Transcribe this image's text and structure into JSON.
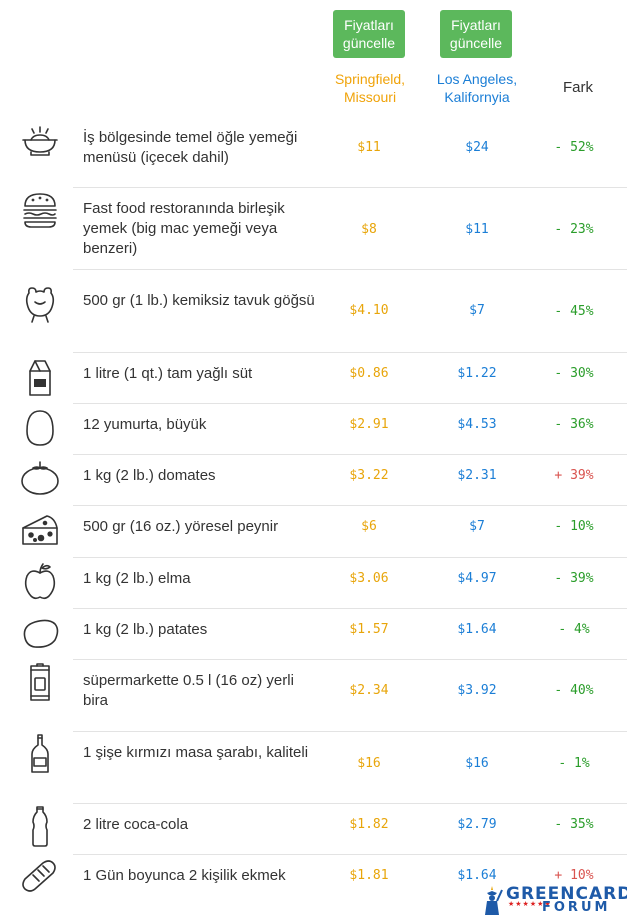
{
  "header": {
    "update_button_1": "Fiyatları güncelle",
    "update_button_2": "Fiyatları güncelle",
    "city_a": "Springfield, Missouri",
    "city_b": "Los Angeles, Kalifornyia",
    "diff_label": "Fark"
  },
  "rows": [
    {
      "icon": "lunch-icon",
      "item": "İş bölgesinde temel öğle yemeği menüsü (içecek dahil)",
      "a": "$11",
      "b": "$24",
      "diff": "- 52%"
    },
    {
      "icon": "burger-icon",
      "item": "Fast food restoranında birleşik yemek (big mac yemeği veya benzeri)",
      "a": "$8",
      "b": "$11",
      "diff": "- 23%"
    },
    {
      "icon": "chicken-icon",
      "item": "500 gr (1 lb.) kemiksiz tavuk göğsü",
      "a": "$4.10",
      "b": "$7",
      "diff": "- 45%"
    },
    {
      "icon": "milk-icon",
      "item": "1 litre (1 qt.) tam yağlı süt",
      "a": "$0.86",
      "b": "$1.22",
      "diff": "- 30%"
    },
    {
      "icon": "egg-icon",
      "item": "12 yumurta, büyük",
      "a": "$2.91",
      "b": "$4.53",
      "diff": "- 36%"
    },
    {
      "icon": "tomato-icon",
      "item": "1 kg (2 lb.) domates",
      "a": "$3.22",
      "b": "$2.31",
      "diff": "+ 39%"
    },
    {
      "icon": "cheese-icon",
      "item": "500 gr (16 oz.) yöresel peynir",
      "a": "$6",
      "b": "$7",
      "diff": "- 10%"
    },
    {
      "icon": "apple-icon",
      "item": "1 kg (2 lb.) elma",
      "a": "$3.06",
      "b": "$4.97",
      "diff": "- 39%"
    },
    {
      "icon": "potato-icon",
      "item": "1 kg (2 lb.) patates",
      "a": "$1.57",
      "b": "$1.64",
      "diff": "- 4%"
    },
    {
      "icon": "beer-can-icon",
      "item": "süpermarkette 0.5 l (16 oz) yerli bira",
      "a": "$2.34",
      "b": "$3.92",
      "diff": "- 40%"
    },
    {
      "icon": "wine-bottle-icon",
      "item": "1 şişe kırmızı masa şarabı, kaliteli",
      "a": "$16",
      "b": "$16",
      "diff": "- 1%"
    },
    {
      "icon": "soda-bottle-icon",
      "item": "2 litre coca-cola",
      "a": "$1.82",
      "b": "$2.79",
      "diff": "- 35%"
    },
    {
      "icon": "bread-icon",
      "item": "1 Gün boyunca 2 kişilik ekmek",
      "a": "$1.81",
      "b": "$1.64",
      "diff": "+ 10%"
    }
  ],
  "watermark": {
    "line1": "GREENCARD",
    "line2": "FORUM",
    "stars": "★★★★★★"
  }
}
